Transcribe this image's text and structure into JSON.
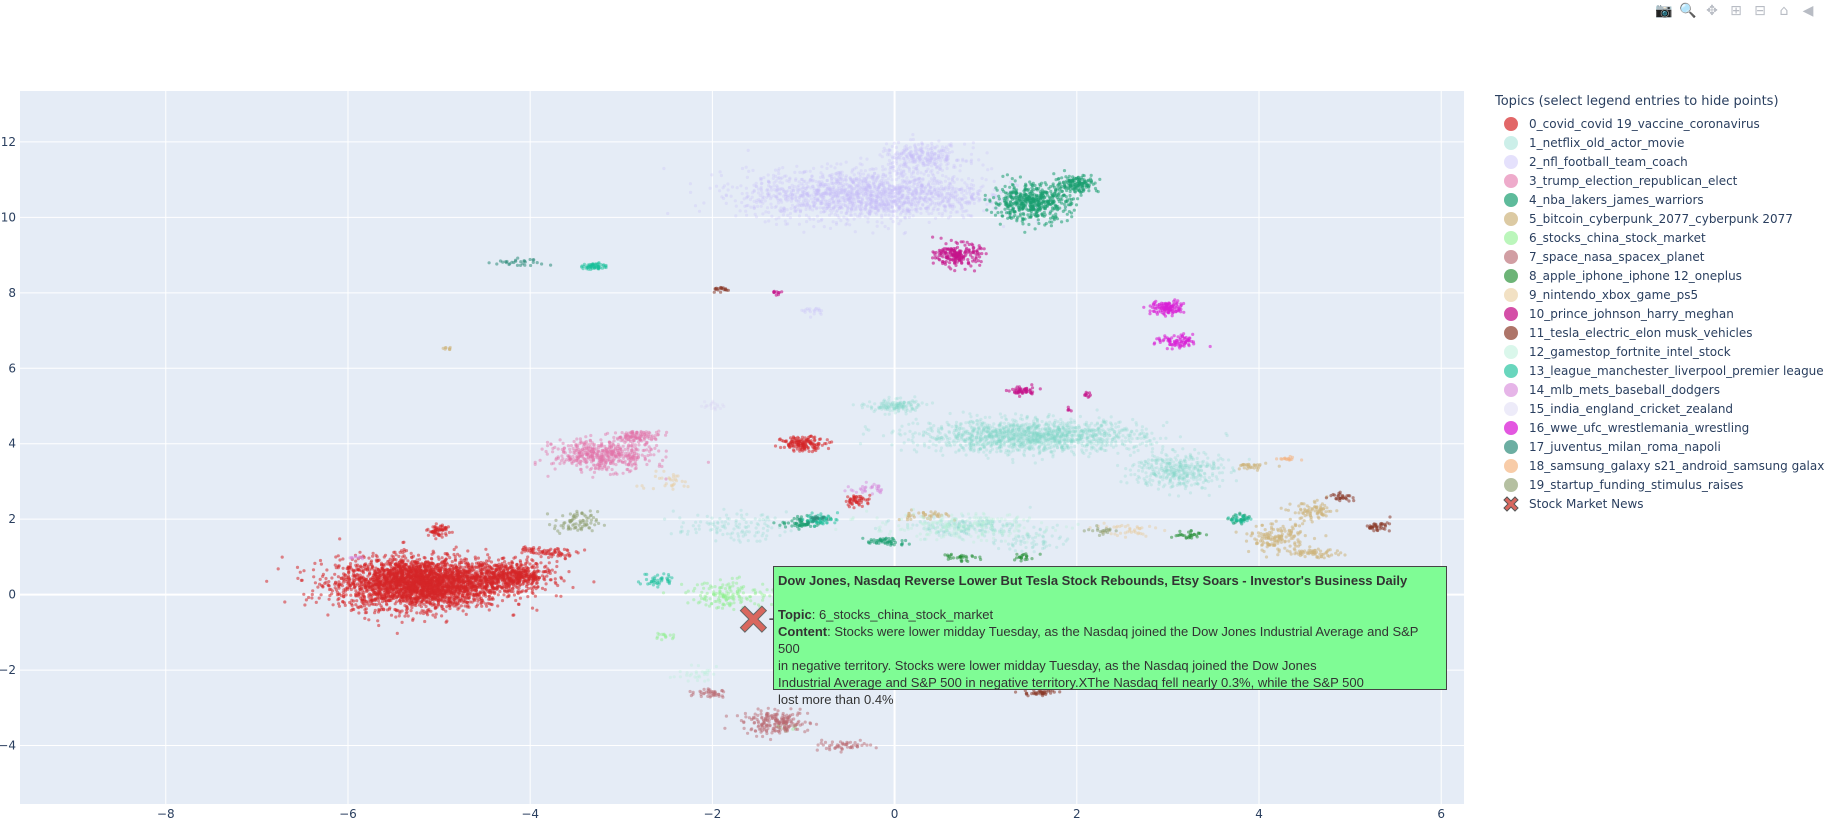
{
  "modebar": {
    "buttons": [
      {
        "name": "camera-icon",
        "glyph": "📷"
      },
      {
        "name": "zoom-icon",
        "glyph": "🔍"
      },
      {
        "name": "pan-icon",
        "glyph": "✥"
      },
      {
        "name": "zoom-in-icon",
        "glyph": "⊞"
      },
      {
        "name": "zoom-out-icon",
        "glyph": "⊟"
      },
      {
        "name": "home-icon",
        "glyph": "⌂"
      },
      {
        "name": "plotly-logo-icon",
        "glyph": "◀"
      }
    ]
  },
  "chart_data": {
    "type": "scatter",
    "xlim": [
      -9.6,
      6.25
    ],
    "ylim": [
      -5.55,
      13.35
    ],
    "xticks": [
      -8,
      -6,
      -4,
      -2,
      0,
      2,
      4,
      6
    ],
    "yticks": [
      -4,
      -2,
      0,
      2,
      4,
      6,
      8,
      10,
      12
    ],
    "xtick_labels": [
      "−8",
      "−6",
      "−4",
      "−2",
      "0",
      "2",
      "4",
      "6"
    ],
    "ytick_labels": [
      "−4",
      "−2",
      "0",
      "2",
      "4",
      "6",
      "8",
      "10",
      "12"
    ],
    "grid": true,
    "legend_title": "Topics (select legend entries to hide points)",
    "legend_position": "right",
    "series": [
      {
        "name": "0_covid_covid 19_vaccine_coronavirus",
        "color": "#d62728",
        "opacity": 0.55,
        "clusters": [
          [
            -5.2,
            0.3,
            0.75,
            0.55,
            3000
          ],
          [
            -4.2,
            0.5,
            0.35,
            0.3,
            500
          ],
          [
            -5.0,
            1.7,
            0.1,
            0.12,
            60
          ],
          [
            -1.0,
            4.0,
            0.2,
            0.15,
            150
          ],
          [
            -0.4,
            2.5,
            0.12,
            0.12,
            50
          ],
          [
            -3.7,
            1.1,
            0.2,
            0.1,
            50
          ],
          [
            -4.0,
            1.2,
            0.1,
            0.1,
            25
          ]
        ]
      },
      {
        "name": "1_netflix_old_actor_movie",
        "color": "#7fd6c9",
        "opacity": 0.25,
        "clusters": [
          [
            1.5,
            4.2,
            1.0,
            0.35,
            1500
          ],
          [
            3.1,
            3.3,
            0.4,
            0.4,
            400
          ],
          [
            0.0,
            5.0,
            0.25,
            0.15,
            150
          ],
          [
            0.8,
            1.8,
            0.6,
            0.2,
            200
          ],
          [
            -1.8,
            1.8,
            0.5,
            0.3,
            120
          ],
          [
            1.5,
            1.4,
            0.3,
            0.25,
            60
          ]
        ]
      },
      {
        "name": "2_nfl_football_team_coach",
        "color": "#c6bdf8",
        "opacity": 0.3,
        "clusters": [
          [
            -0.3,
            10.6,
            1.1,
            0.55,
            1800
          ],
          [
            0.3,
            11.6,
            0.4,
            0.3,
            300
          ],
          [
            -0.9,
            -0.5,
            0.5,
            0.2,
            40
          ],
          [
            -0.9,
            7.5,
            0.15,
            0.1,
            20
          ]
        ]
      },
      {
        "name": "3_trump_election_republican_elect",
        "color": "#e373a8",
        "opacity": 0.45,
        "clusters": [
          [
            -3.2,
            3.7,
            0.45,
            0.35,
            500
          ],
          [
            -2.8,
            4.2,
            0.2,
            0.12,
            100
          ]
        ]
      },
      {
        "name": "4_nba_lakers_james_warriors",
        "color": "#1a9e70",
        "opacity": 0.55,
        "clusters": [
          [
            1.5,
            10.4,
            0.35,
            0.4,
            500
          ],
          [
            2.0,
            10.9,
            0.2,
            0.2,
            150
          ],
          [
            -1.0,
            1.9,
            0.2,
            0.12,
            60
          ],
          [
            -0.1,
            1.4,
            0.2,
            0.1,
            50
          ],
          [
            3.8,
            2.0,
            0.1,
            0.1,
            30
          ]
        ]
      },
      {
        "name": "5_bitcoin_cyberpunk_2077_cyberpunk 2077",
        "color": "#cdb47c",
        "opacity": 0.55,
        "clusters": [
          [
            4.2,
            1.5,
            0.25,
            0.3,
            150
          ],
          [
            4.6,
            1.1,
            0.25,
            0.1,
            60
          ],
          [
            4.6,
            2.2,
            0.2,
            0.2,
            80
          ],
          [
            3.9,
            3.4,
            0.15,
            0.1,
            30
          ],
          [
            -4.9,
            6.5,
            0.05,
            0.05,
            8
          ],
          [
            0.3,
            2.1,
            0.25,
            0.1,
            40
          ]
        ]
      },
      {
        "name": "6_stocks_china_stock_market",
        "color": "#8ef08e",
        "opacity": 0.45,
        "clusters": [
          [
            -1.8,
            0.0,
            0.4,
            0.3,
            150
          ],
          [
            -2.5,
            -1.1,
            0.1,
            0.1,
            15
          ],
          [
            -1.2,
            -3.5,
            0.1,
            0.1,
            10
          ]
        ]
      },
      {
        "name": "7_space_nasa_spacex_planet",
        "color": "#b96a72",
        "opacity": 0.5,
        "clusters": [
          [
            -1.3,
            -3.4,
            0.3,
            0.25,
            200
          ],
          [
            -0.6,
            -4.0,
            0.3,
            0.1,
            50
          ],
          [
            -2.0,
            -2.6,
            0.15,
            0.1,
            40
          ]
        ]
      },
      {
        "name": "8_apple_iphone_iphone 12_oneplus",
        "color": "#1e8c2e",
        "opacity": 0.5,
        "clusters": [
          [
            0.7,
            1.0,
            0.15,
            0.1,
            30
          ],
          [
            3.2,
            1.6,
            0.15,
            0.1,
            30
          ],
          [
            1.4,
            1.0,
            0.1,
            0.1,
            20
          ]
        ]
      },
      {
        "name": "9_nintendo_xbox_game_ps5",
        "color": "#e8c893",
        "opacity": 0.4,
        "clusters": [
          [
            2.5,
            1.7,
            0.3,
            0.2,
            40
          ],
          [
            -2.5,
            3.0,
            0.3,
            0.2,
            30
          ]
        ]
      },
      {
        "name": "10_prince_johnson_harry_meghan",
        "color": "#c5148a",
        "opacity": 0.6,
        "clusters": [
          [
            0.7,
            9.0,
            0.2,
            0.25,
            200
          ],
          [
            1.4,
            5.4,
            0.12,
            0.1,
            50
          ],
          [
            -1.3,
            8.0,
            0.05,
            0.05,
            10
          ],
          [
            2.1,
            5.3,
            0.05,
            0.05,
            10
          ],
          [
            1.9,
            4.9,
            0.05,
            0.05,
            5
          ]
        ]
      },
      {
        "name": "11_tesla_electric_elon musk_vehicles",
        "color": "#8b3a2a",
        "opacity": 0.55,
        "clusters": [
          [
            1.6,
            -2.6,
            0.15,
            0.08,
            40
          ],
          [
            5.3,
            1.8,
            0.12,
            0.1,
            40
          ],
          [
            4.9,
            2.6,
            0.1,
            0.08,
            30
          ],
          [
            -1.9,
            8.1,
            0.1,
            0.05,
            20
          ]
        ]
      },
      {
        "name": "12_gamestop_fortnite_intel_stock",
        "color": "#b6f0d8",
        "opacity": 0.35,
        "clusters": [
          [
            0.7,
            1.8,
            0.8,
            0.3,
            200
          ],
          [
            -2.2,
            -2.1,
            0.2,
            0.15,
            30
          ]
        ]
      },
      {
        "name": "13_league_manchester_liverpool_premier league",
        "color": "#18c09a",
        "opacity": 0.5,
        "clusters": [
          [
            -3.3,
            8.7,
            0.1,
            0.08,
            60
          ],
          [
            -0.8,
            2.0,
            0.15,
            0.12,
            50
          ],
          [
            -2.6,
            0.4,
            0.15,
            0.15,
            40
          ],
          [
            3.8,
            2.0,
            0.1,
            0.1,
            20
          ]
        ]
      },
      {
        "name": "14_mlb_mets_baseball_dodgers",
        "color": "#d583d9",
        "opacity": 0.45,
        "clusters": [
          [
            -0.3,
            2.8,
            0.15,
            0.12,
            30
          ],
          [
            -5.9,
            1.0,
            0.08,
            0.05,
            10
          ]
        ]
      },
      {
        "name": "15_india_england_cricket_zealand",
        "color": "#d6d2f2",
        "opacity": 0.3,
        "clusters": [
          [
            -0.9,
            -0.5,
            0.4,
            0.25,
            60
          ],
          [
            -2.0,
            5.0,
            0.15,
            0.1,
            20
          ]
        ]
      },
      {
        "name": "16_wwe_ufc_wrestlemania_wrestling",
        "color": "#d91fd6",
        "opacity": 0.6,
        "clusters": [
          [
            3.0,
            7.6,
            0.15,
            0.15,
            120
          ],
          [
            3.1,
            6.7,
            0.2,
            0.15,
            80
          ]
        ]
      },
      {
        "name": "17_juventus_milan_roma_napoli",
        "color": "#2e8c7a",
        "opacity": 0.55,
        "clusters": [
          [
            -4.1,
            8.8,
            0.25,
            0.1,
            30
          ],
          [
            -0.9,
            2.0,
            0.1,
            0.08,
            20
          ]
        ]
      },
      {
        "name": "18_samsung_galaxy s21_android_samsung galaxy",
        "color": "#f5b07a",
        "opacity": 0.5,
        "clusters": [
          [
            4.3,
            3.6,
            0.1,
            0.05,
            15
          ]
        ]
      },
      {
        "name": "19_startup_funding_stimulus_raises",
        "color": "#8e9e6e",
        "opacity": 0.5,
        "clusters": [
          [
            -3.5,
            1.9,
            0.2,
            0.25,
            80
          ],
          [
            2.3,
            1.7,
            0.15,
            0.1,
            20
          ]
        ]
      }
    ],
    "highlight": {
      "name": "Stock Market News",
      "x": -1.55,
      "y": -0.65,
      "color": "#d9675e"
    },
    "hover_label": {
      "title": "Dow Jones, Nasdaq Reverse Lower But Tesla Stock Rebounds, Etsy Soars - Investor's Business Daily",
      "topic_label": "Topic",
      "topic": "6_stocks_china_stock_market",
      "content_label": "Content",
      "content_lines": [
        "Stocks were lower midday Tuesday, as the Nasdaq joined the Dow Jones Industrial Average and S&P 500",
        "in negative territory. Stocks were lower midday Tuesday, as the Nasdaq joined the Dow Jones",
        "Industrial Average and S&P 500 in negative territory.XThe Nasdaq fell nearly 0.3%, while the S&P 500",
        "lost more than 0.4%"
      ],
      "background": "#7ffc95"
    }
  }
}
